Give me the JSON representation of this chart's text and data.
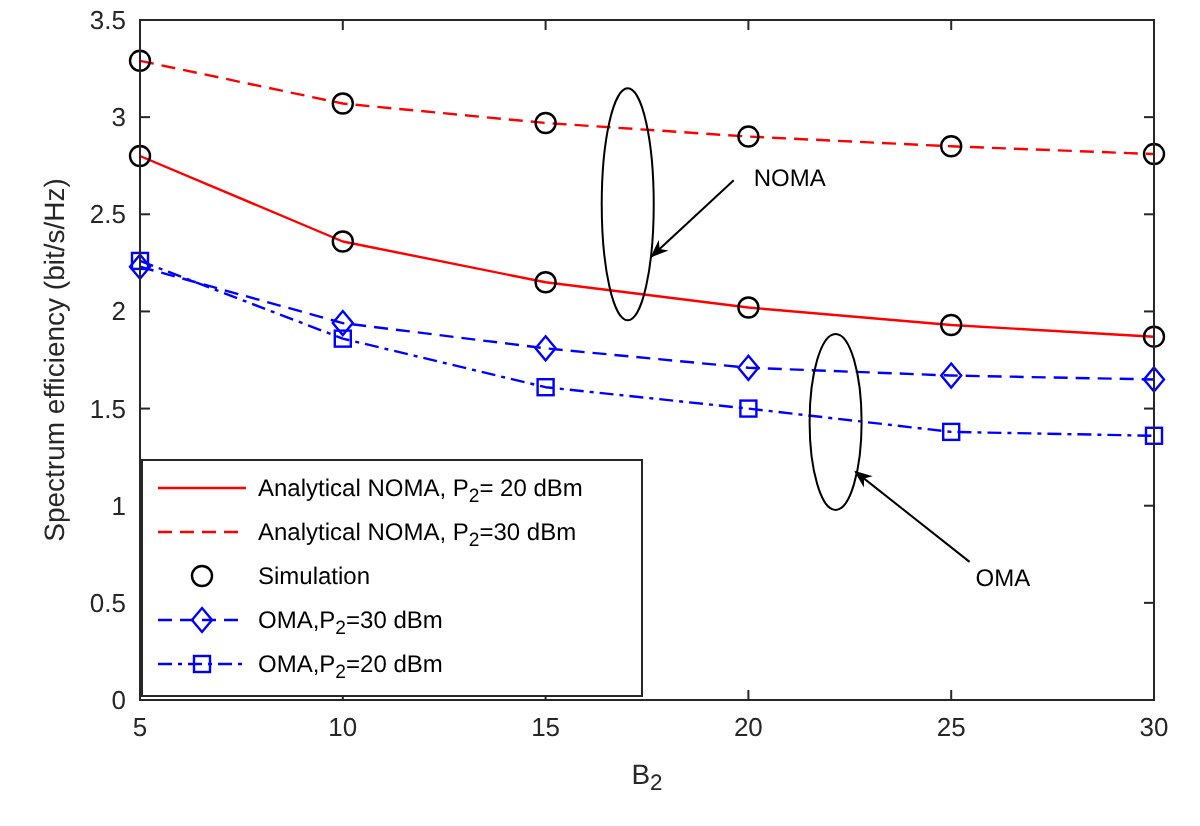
{
  "chart_data": {
    "type": "line",
    "xlabel": "B$_{2}$",
    "ylabel": "Spectrum efficiency (bit/s/Hz)",
    "x": [
      5,
      10,
      15,
      20,
      25,
      30
    ],
    "series": [
      {
        "name": "Analytical NOMA, P$_{2}$= 20 dBm",
        "color": "#ff0000",
        "line_style": "solid",
        "marker": "none",
        "values": [
          2.8,
          2.36,
          2.15,
          2.02,
          1.93,
          1.87
        ]
      },
      {
        "name": "Analytical NOMA, P$_{2}$=30 dBm",
        "color": "#ff0000",
        "line_style": "dashed",
        "marker": "none",
        "values": [
          3.29,
          3.07,
          2.97,
          2.9,
          2.85,
          2.81
        ]
      },
      {
        "name": "Simulation",
        "type": "scatter",
        "color": "#000000",
        "marker": "circle",
        "x": [
          5,
          10,
          15,
          20,
          25,
          30,
          5,
          10,
          15,
          20,
          25,
          30
        ],
        "values": [
          2.8,
          2.36,
          2.15,
          2.02,
          1.93,
          1.87,
          3.29,
          3.07,
          2.97,
          2.9,
          2.85,
          2.81
        ]
      },
      {
        "name": "OMA,P$_{2}$=30 dBm",
        "color": "#0000ff",
        "line_style": "dashed",
        "marker": "diamond",
        "values": [
          2.23,
          1.94,
          1.81,
          1.71,
          1.67,
          1.65
        ]
      },
      {
        "name": "OMA,P$_{2}$=20 dBm",
        "color": "#0000ff",
        "line_style": "dashdot",
        "marker": "square",
        "values": [
          2.26,
          1.86,
          1.61,
          1.5,
          1.38,
          1.36
        ]
      }
    ],
    "xlim": [
      5,
      30
    ],
    "xticks": [
      5,
      10,
      15,
      20,
      25,
      30
    ],
    "ylim": [
      0,
      3.5
    ],
    "yticks": [
      0,
      0.5,
      1,
      1.5,
      2,
      2.5,
      3,
      3.5
    ],
    "grid": false,
    "legend": "bottom left",
    "annotations": [
      "NOMA",
      "OMA"
    ]
  }
}
